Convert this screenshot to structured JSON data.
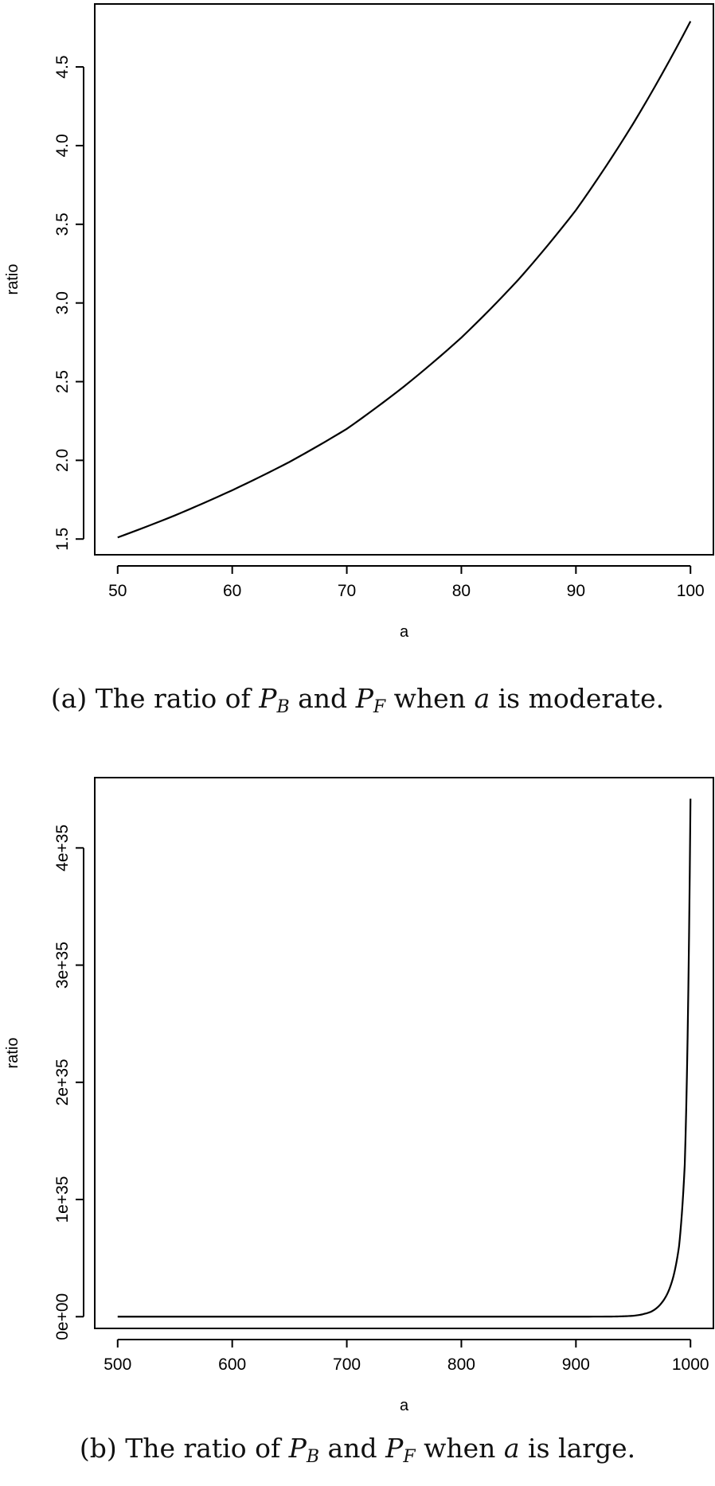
{
  "chart_data": [
    {
      "type": "line",
      "xlabel": "a",
      "ylabel": "ratio",
      "xlim": [
        48,
        102
      ],
      "ylim": [
        1.4,
        4.9
      ],
      "x_ticks": [
        50,
        60,
        70,
        80,
        90,
        100
      ],
      "x_tick_labels": [
        "50",
        "60",
        "70",
        "80",
        "90",
        "100"
      ],
      "y_ticks": [
        1.5,
        2.0,
        2.5,
        3.0,
        3.5,
        4.0,
        4.5
      ],
      "y_tick_labels": [
        "1.5",
        "2.0",
        "2.5",
        "3.0",
        "3.5",
        "4.0",
        "4.5"
      ],
      "series": [
        {
          "x": [
            50,
            55,
            60,
            65,
            70,
            75,
            80,
            85,
            90,
            95,
            100
          ],
          "y": [
            1.51,
            1.65,
            1.81,
            1.99,
            2.2,
            2.47,
            2.78,
            3.15,
            3.59,
            4.14,
            4.79
          ]
        }
      ],
      "caption": {
        "prefix": "(a) The ratio of ",
        "p1": "P",
        "p1_sub": "B",
        "and": " and ",
        "p2": "P",
        "p2_sub": "F",
        "when": " when ",
        "var": "a",
        "suffix": " is moderate."
      }
    },
    {
      "type": "line",
      "xlabel": "a",
      "ylabel": "ratio",
      "xlim": [
        480,
        1020
      ],
      "ylim": [
        -1e+34,
        4.6e+35
      ],
      "x_ticks": [
        500,
        600,
        700,
        800,
        900,
        1000
      ],
      "x_tick_labels": [
        "500",
        "600",
        "700",
        "800",
        "900",
        "1000"
      ],
      "y_ticks": [
        0,
        1e+35,
        2e+35,
        3e+35,
        4e+35
      ],
      "y_tick_labels": [
        "0e+00",
        "1e+35",
        "2e+35",
        "3e+35",
        "4e+35"
      ],
      "series": [
        {
          "x": [
            500,
            900,
            930,
            940,
            950,
            960,
            965,
            970,
            975,
            980,
            985,
            990,
            995,
            1000
          ],
          "y": [
            0,
            0,
            1e+32,
            3e+32,
            8e+32,
            2.5e+33,
            4e+33,
            7e+33,
            1.2e+34,
            2e+34,
            3.4e+34,
            6e+34,
            1.3e+35,
            4.42e+35
          ]
        }
      ],
      "caption": {
        "prefix": "(b) The ratio of ",
        "p1": "P",
        "p1_sub": "B",
        "and": " and ",
        "p2": "P",
        "p2_sub": "F",
        "when": " when ",
        "var": "a",
        "suffix": " is large."
      }
    }
  ]
}
